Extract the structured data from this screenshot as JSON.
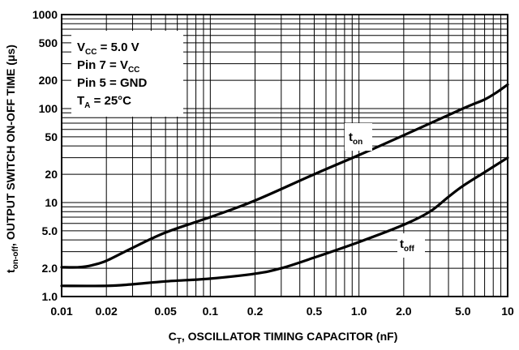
{
  "chart_data": {
    "type": "line",
    "x_scale": "log",
    "y_scale": "log",
    "xlim": [
      0.01,
      10
    ],
    "ylim": [
      1.0,
      1000
    ],
    "grid": true,
    "x_ticks": [
      {
        "value": 0.01,
        "label": "0.01"
      },
      {
        "value": 0.02,
        "label": "0.02"
      },
      {
        "value": 0.05,
        "label": "0.05"
      },
      {
        "value": 0.1,
        "label": "0.1"
      },
      {
        "value": 0.2,
        "label": "0.2"
      },
      {
        "value": 0.5,
        "label": "0.5"
      },
      {
        "value": 1.0,
        "label": "1.0"
      },
      {
        "value": 2.0,
        "label": "2.0"
      },
      {
        "value": 5.0,
        "label": "5.0"
      },
      {
        "value": 10,
        "label": "10"
      }
    ],
    "y_ticks": [
      {
        "value": 1.0,
        "label": "1.0"
      },
      {
        "value": 2.0,
        "label": "2.0"
      },
      {
        "value": 5.0,
        "label": "5.0"
      },
      {
        "value": 10,
        "label": "10"
      },
      {
        "value": 20,
        "label": "20"
      },
      {
        "value": 50,
        "label": "50"
      },
      {
        "value": 100,
        "label": "100"
      },
      {
        "value": 200,
        "label": "200"
      },
      {
        "value": 500,
        "label": "500"
      },
      {
        "value": 1000,
        "label": "1000"
      }
    ],
    "xlabel": {
      "main": "C",
      "sub": "T",
      "rest": ", OSCILLATOR TIMING CAPACITOR (nF)"
    },
    "ylabel": {
      "main": "t",
      "sub": "on-off",
      "rest": ", OUTPUT SWITCH ON-OFF TIME (μs)"
    },
    "conditions": [
      {
        "parts": [
          {
            "t": "V"
          },
          {
            "t": "CC",
            "sub": true
          },
          {
            "t": " = 5.0 V"
          }
        ]
      },
      {
        "parts": [
          {
            "t": "Pin 7 = V"
          },
          {
            "t": "CC",
            "sub": true
          }
        ]
      },
      {
        "parts": [
          {
            "t": "Pin 5 = GND"
          }
        ]
      },
      {
        "parts": [
          {
            "t": "T"
          },
          {
            "t": "A",
            "sub": true
          },
          {
            "t": " = 25°C"
          }
        ]
      }
    ],
    "series": [
      {
        "name": "t_on",
        "label_main": "t",
        "label_sub": "on",
        "x": [
          0.01,
          0.013,
          0.016,
          0.02,
          0.03,
          0.05,
          0.1,
          0.2,
          0.5,
          1.0,
          2.0,
          5.0,
          7.0,
          8.5,
          10
        ],
        "y": [
          2.05,
          2.05,
          2.15,
          2.4,
          3.3,
          4.8,
          7.0,
          10.5,
          20,
          32,
          52,
          100,
          125,
          150,
          180
        ]
      },
      {
        "name": "t_off",
        "label_main": "t",
        "label_sub": "off",
        "x": [
          0.01,
          0.02,
          0.03,
          0.05,
          0.1,
          0.2,
          0.3,
          0.5,
          1.0,
          2.0,
          3.0,
          4.0,
          5.0,
          7.0,
          10
        ],
        "y": [
          1.3,
          1.3,
          1.35,
          1.45,
          1.55,
          1.75,
          2.0,
          2.6,
          3.8,
          5.8,
          8.0,
          11.5,
          15,
          21,
          30
        ]
      }
    ]
  }
}
